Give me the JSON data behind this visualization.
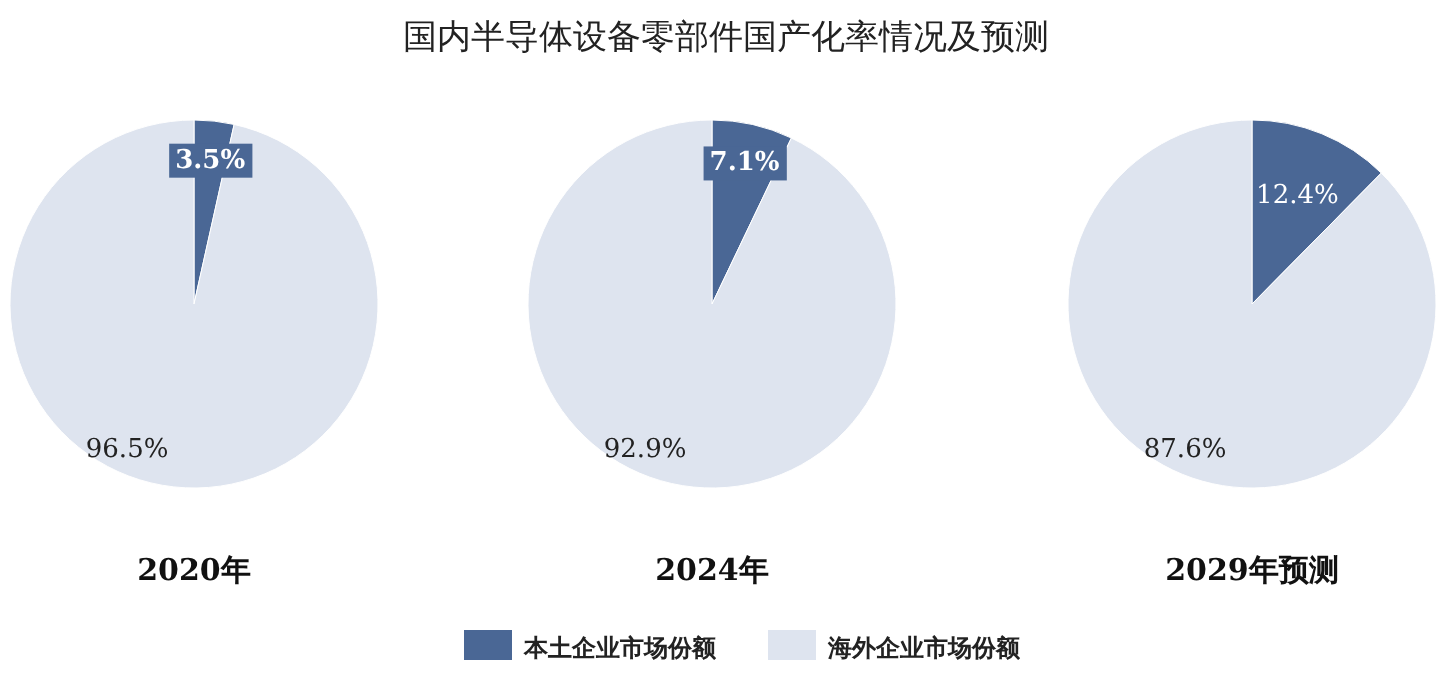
{
  "chart_data": [
    {
      "type": "pie",
      "xlabel": "2020年",
      "categories": [
        null,
        null
      ],
      "values": [
        3.5,
        96.5
      ],
      "value_labels": [
        "3.5%",
        "96.5%"
      ],
      "colors": [
        "#4a6795",
        "#dee4ef"
      ]
    },
    {
      "type": "pie",
      "title": "国内半导体设备零部件国产化率情况及预测",
      "xlabel": "2024年",
      "categories": [
        "本土企业市场份额",
        "海外企业市场份额"
      ],
      "values": [
        7.1,
        92.9
      ],
      "value_labels": [
        "7.1%",
        "92.9%"
      ],
      "colors": [
        "#4a6795",
        "#dee4ef"
      ],
      "legend": "bottom"
    },
    {
      "type": "pie",
      "xlabel": "2029年预测",
      "categories": [
        null,
        null
      ],
      "values": [
        12.4,
        87.6
      ],
      "value_labels": [
        "12.4%",
        "87.6%"
      ],
      "colors": [
        "#4a6795",
        "#dee4ef"
      ]
    }
  ]
}
